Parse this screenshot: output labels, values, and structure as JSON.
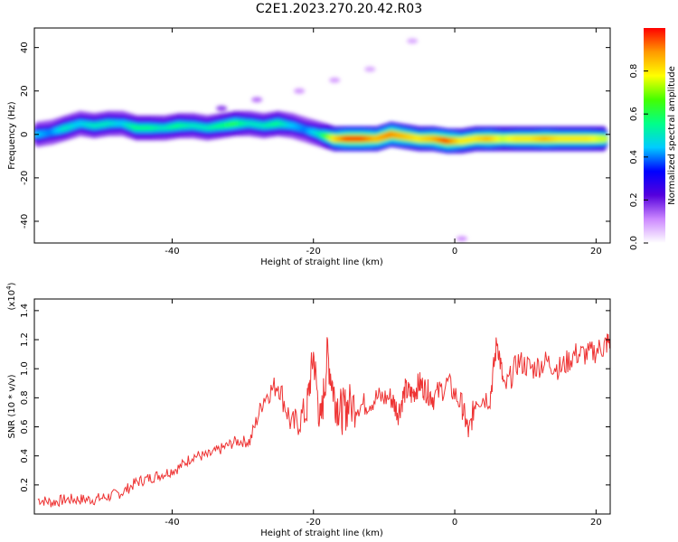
{
  "title": "C2E1.2023.270.20.42.R03",
  "chart_data": [
    {
      "type": "heatmap",
      "title": "C2E1.2023.270.20.42.R03",
      "xlabel": "Height of straight line (km)",
      "ylabel": "Frequency (Hz)",
      "xlim": [
        -59.5,
        22
      ],
      "ylim": [
        -50,
        49
      ],
      "xticks": [
        -40,
        -20,
        0,
        20
      ],
      "yticks": [
        40,
        20,
        0,
        -20,
        -40
      ],
      "colorbar": {
        "label": "Normalized spectral amplitude",
        "ticks": [
          0.0,
          0.2,
          0.4,
          0.6,
          0.8
        ],
        "range": [
          0,
          1
        ],
        "colormap": [
          "#ffffff",
          "#cc88ff",
          "#5500dd",
          "#0000ff",
          "#00ccff",
          "#00ff88",
          "#44ff00",
          "#ffff00",
          "#ff9900",
          "#ff0000"
        ]
      },
      "ridge": {
        "x": [
          -59,
          -57,
          -55,
          -53,
          -51,
          -49,
          -47,
          -45,
          -43,
          -41,
          -39,
          -37,
          -35,
          -33,
          -31,
          -29,
          -27,
          -25,
          -23,
          -21,
          -19,
          -17,
          -15,
          -13,
          -11,
          -9,
          -7,
          -5,
          -3,
          -1,
          1,
          3,
          5,
          7,
          9,
          11,
          13,
          15,
          17,
          19,
          21
        ],
        "freq": [
          0,
          1,
          3,
          5,
          4,
          5,
          5,
          3,
          3,
          3,
          4,
          4,
          3,
          4,
          5,
          5,
          4,
          5,
          4,
          2,
          0,
          -2,
          -2,
          -2,
          -2,
          0,
          -1,
          -2,
          -2,
          -3,
          -3,
          -2,
          -2,
          -2,
          -2,
          -2,
          -2,
          -2,
          -2,
          -2,
          -2
        ],
        "amplitude": [
          0.45,
          0.4,
          0.5,
          0.45,
          0.5,
          0.5,
          0.45,
          0.55,
          0.55,
          0.5,
          0.55,
          0.5,
          0.5,
          0.55,
          0.6,
          0.5,
          0.5,
          0.55,
          0.45,
          0.4,
          0.5,
          0.8,
          0.95,
          0.95,
          0.85,
          0.9,
          0.85,
          0.8,
          0.85,
          0.95,
          0.8,
          0.8,
          0.85,
          0.75,
          0.8,
          0.8,
          0.85,
          0.8,
          0.8,
          0.8,
          0.75
        ]
      },
      "faint_features": [
        {
          "x": -33,
          "freq": 12,
          "amplitude": 0.12
        },
        {
          "x": -28,
          "freq": 16,
          "amplitude": 0.08
        },
        {
          "x": -22,
          "freq": 20,
          "amplitude": 0.05
        },
        {
          "x": -17,
          "freq": 25,
          "amplitude": 0.04
        },
        {
          "x": -12,
          "freq": 30,
          "amplitude": 0.03
        },
        {
          "x": -6,
          "freq": 43,
          "amplitude": 0.03
        },
        {
          "x": 1,
          "freq": -48,
          "amplitude": 0.05
        }
      ]
    },
    {
      "type": "line",
      "xlabel": "Height of straight line (km)",
      "ylabel": "SNR (10 * v/v)",
      "y_multiplier_label": "(x10^4)",
      "xlim": [
        -59.5,
        22
      ],
      "ylim": [
        0.0,
        1.48
      ],
      "xticks": [
        -40,
        -20,
        0,
        20
      ],
      "yticks": [
        0.2,
        0.4,
        0.6,
        0.8,
        1.0,
        1.2,
        1.4
      ],
      "series": [
        {
          "color": "#ee3333",
          "x": [
            -59,
            -57,
            -55,
            -53,
            -51,
            -49,
            -47,
            -45,
            -43,
            -41,
            -39,
            -37,
            -35,
            -33,
            -31,
            -29,
            -27,
            -25,
            -23,
            -21,
            -20,
            -19,
            -18,
            -17,
            -16,
            -15,
            -13,
            -11,
            -9,
            -8,
            -7,
            -6,
            -5,
            -4,
            -3,
            -1,
            1,
            2,
            3,
            5,
            6,
            7,
            9,
            11,
            13,
            15,
            17,
            19,
            21,
            22
          ],
          "y": [
            0.1,
            0.08,
            0.1,
            0.1,
            0.1,
            0.12,
            0.15,
            0.22,
            0.25,
            0.28,
            0.32,
            0.4,
            0.4,
            0.45,
            0.5,
            0.5,
            0.8,
            0.9,
            0.6,
            0.7,
            1.1,
            0.6,
            1.1,
            0.8,
            0.7,
            0.75,
            0.75,
            0.8,
            0.8,
            0.7,
            0.85,
            0.82,
            0.9,
            0.85,
            0.8,
            0.9,
            0.75,
            0.55,
            0.8,
            0.8,
            1.2,
            0.85,
            1.05,
            1.0,
            1.05,
            1.0,
            1.1,
            1.1,
            1.15,
            1.2
          ]
        }
      ]
    }
  ]
}
